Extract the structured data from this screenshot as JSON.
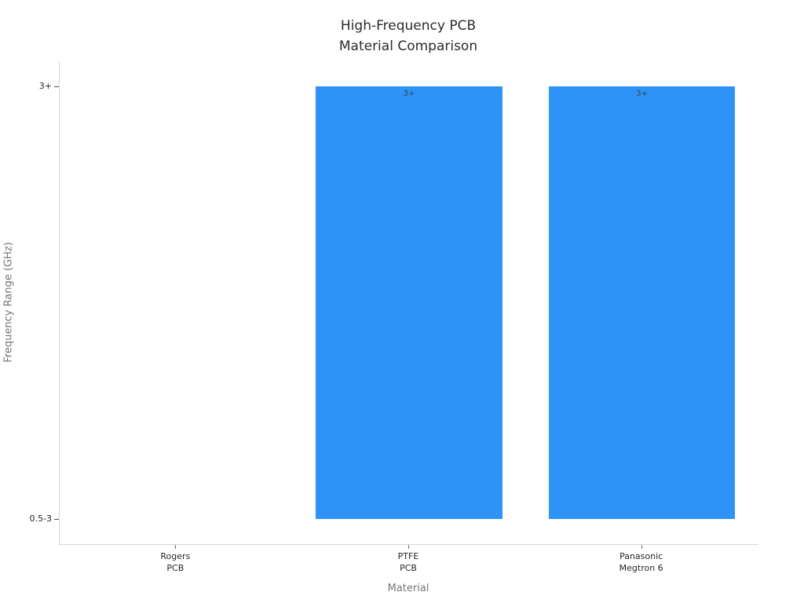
{
  "chart_data": {
    "type": "bar",
    "title_lines": [
      "High-Frequency PCB",
      "Material Comparison"
    ],
    "xlabel": "Material",
    "ylabel": "Frequency Range (GHz)",
    "categories": [
      {
        "lines": [
          "Rogers",
          "PCB"
        ],
        "value_text": "0.5-3"
      },
      {
        "lines": [
          "PTFE",
          "PCB"
        ],
        "value_text": "3+"
      },
      {
        "lines": [
          "Panasonic",
          "Megtron 6"
        ],
        "value_text": "3+"
      }
    ],
    "series": [
      {
        "name": "Frequency Range",
        "values": [
          0,
          1,
          1
        ],
        "display_labels": [
          "",
          "3+",
          "3+"
        ]
      }
    ],
    "ytick_labels": [
      "0.5-3",
      "3+"
    ],
    "ytick_positions": [
      0,
      1
    ],
    "ylim": [
      -0.058,
      1.058
    ],
    "bar_width_fraction": 0.8,
    "grid": false,
    "legend": null,
    "colors": {
      "bar": "#2D93F7",
      "spine": "#D8D8D8",
      "title": "#2B2B2B",
      "tick_label": "#262626",
      "axis_label": "#757575",
      "bar_label": "#37474F",
      "background": "#FFFFFF"
    }
  }
}
